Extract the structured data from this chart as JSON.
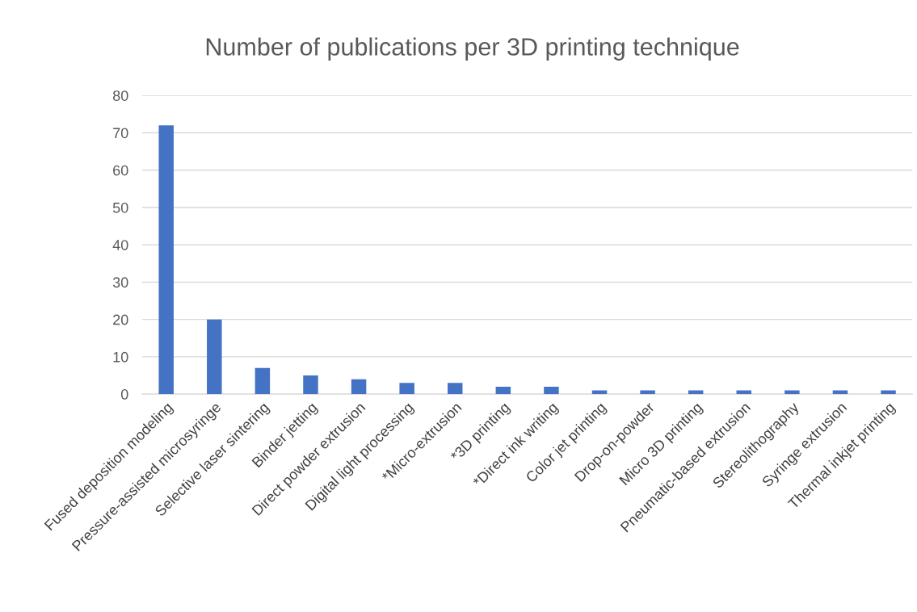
{
  "chart_data": {
    "type": "bar",
    "title": "Number of publications per 3D printing technique",
    "categories": [
      "Fused deposition modeling",
      "Pressure-assisted microsyringe",
      "Selective laser sintering",
      "Binder jetting",
      "Direct powder extrusion",
      "Digital light processing",
      "*Micro-extrusion",
      "*3D printing",
      "*Direct ink writing",
      "Color jet printing",
      "Drop-on-powder",
      "Micro 3D printing",
      "Pneumatic-based extrusion",
      "Stereolithography",
      "Syringe extrusion",
      "Thermal inkjet printing"
    ],
    "values": [
      72,
      20,
      7,
      5,
      4,
      3,
      3,
      2,
      2,
      1,
      1,
      1,
      1,
      1,
      1,
      1
    ],
    "color": "#4472c4",
    "ylim": [
      0,
      80
    ],
    "yticks": [
      0,
      10,
      20,
      30,
      40,
      50,
      60,
      70,
      80
    ],
    "grid": "y"
  }
}
